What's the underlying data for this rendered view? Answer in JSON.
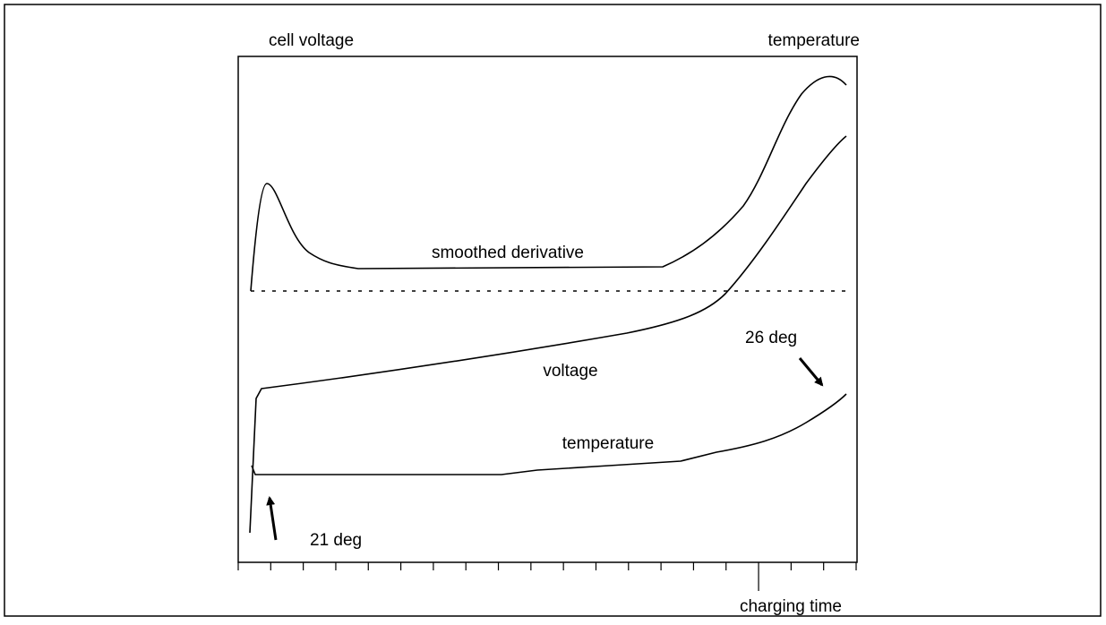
{
  "labels": {
    "left_axis": "cell voltage",
    "right_axis": "temperature",
    "x_axis": "charging time"
  },
  "curves": {
    "derivative": "smoothed derivative",
    "voltage": "voltage",
    "temperature": "temperature"
  },
  "annotations": {
    "start": "21 deg",
    "end": "26 deg"
  }
}
